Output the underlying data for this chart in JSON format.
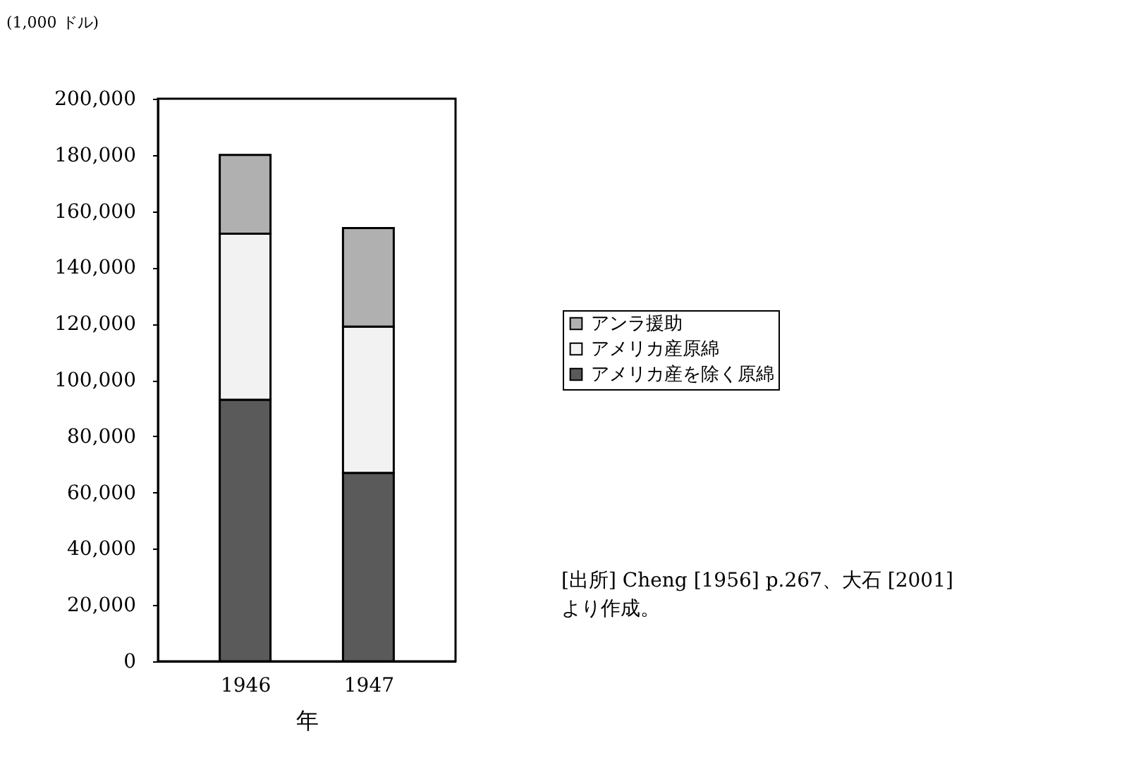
{
  "chart_data": {
    "type": "bar",
    "stacked": true,
    "categories": [
      "1946",
      "1947"
    ],
    "series": [
      {
        "name": "アメリカ産を除く原綿",
        "color": "#5a5a5a",
        "values": [
          93000,
          67000
        ]
      },
      {
        "name": "アメリカ産原綿",
        "color": "#f2f2f2",
        "values": [
          59000,
          52000
        ]
      },
      {
        "name": "アンラ援助",
        "color": "#b0b0b0",
        "values": [
          28000,
          35000
        ]
      }
    ],
    "ylabel": "(1,000 ドル)",
    "xlabel": "年",
    "ylim": [
      0,
      200000
    ],
    "yticks": [
      0,
      {
        "value": 20000,
        "label": "20,000"
      },
      {
        "value": 40000,
        "label": "40,000"
      },
      {
        "value": 60000,
        "label": "60,000"
      },
      {
        "value": 80000,
        "label": "80,000"
      },
      {
        "value": 100000,
        "label": "100,000"
      },
      {
        "value": 120000,
        "label": "120,000"
      },
      {
        "value": 140000,
        "label": "140,000"
      },
      {
        "value": 160000,
        "label": "160,000"
      },
      {
        "value": 180000,
        "label": "180,000"
      },
      {
        "value": 200000,
        "label": "200,000"
      }
    ],
    "grid": false,
    "legend": "right",
    "annotations": [
      "[出所] Cheng [1956] p.267、大石 [2001] より作成。"
    ]
  }
}
